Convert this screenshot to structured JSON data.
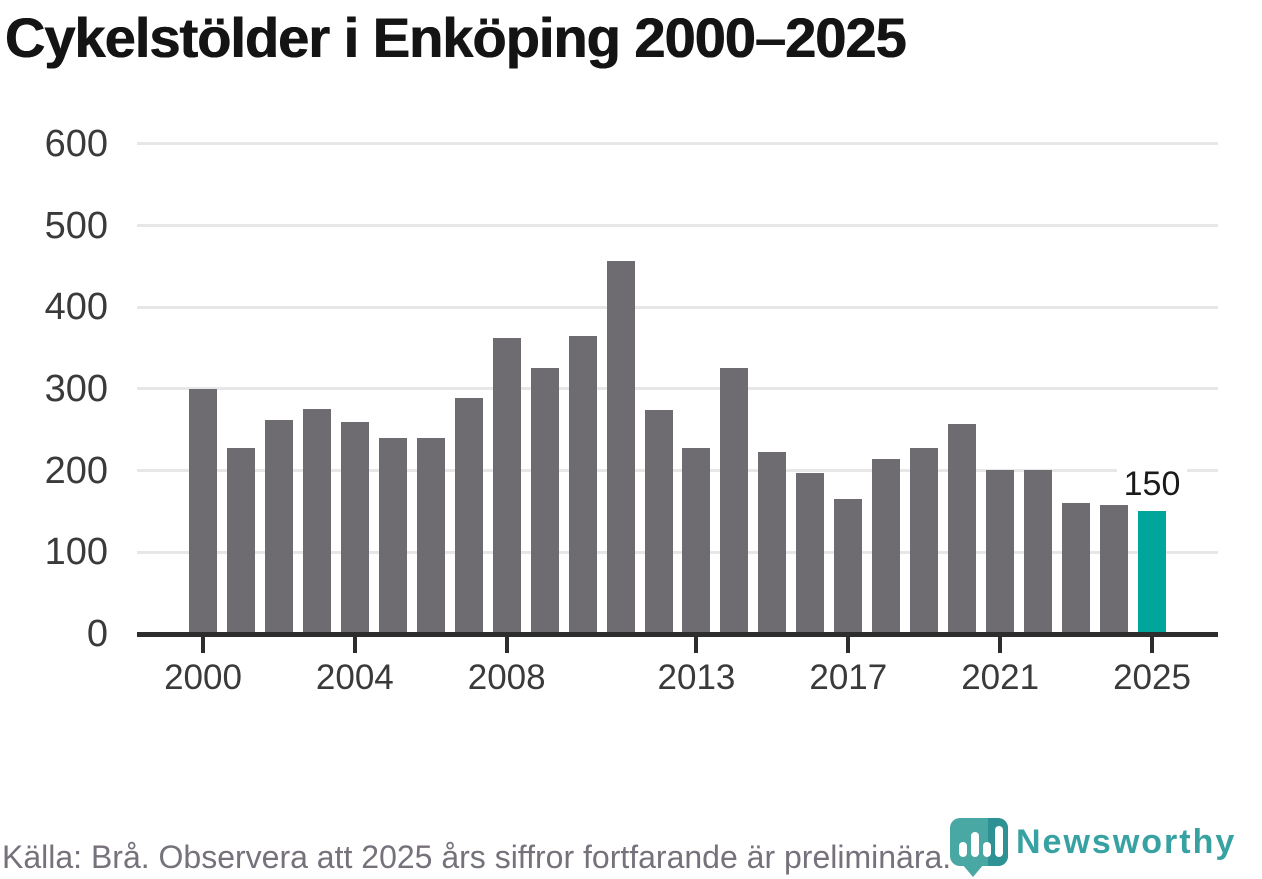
{
  "title": "Cykelstölder i Enköping 2000–2025",
  "source_note": "Källa: Brå. Observera att 2025 års siffror fortfarande är preliminära.",
  "brand": {
    "name": "Newsworthy",
    "icon": "newsworthy-pin-barchart-icon"
  },
  "colors": {
    "bar": "#6e6c71",
    "highlight": "#00a59b",
    "gridline": "#e7e7e7",
    "axis": "#2d2d2d",
    "axis_text": "#3a3a3a",
    "annotation_text": "#1a1a1a",
    "footer_text": "#76717b",
    "logo_teal": "#49a8a3",
    "logo_teal_dark": "#2e9193",
    "wordmark_teal": "#38a2a2"
  },
  "chart_data": {
    "type": "bar",
    "title": "Cykelstölder i Enköping 2000–2025",
    "x": [
      2000,
      2001,
      2002,
      2003,
      2004,
      2005,
      2006,
      2007,
      2008,
      2009,
      2010,
      2011,
      2012,
      2013,
      2014,
      2015,
      2016,
      2017,
      2018,
      2019,
      2020,
      2021,
      2022,
      2023,
      2024,
      2025
    ],
    "values": [
      300,
      228,
      262,
      275,
      260,
      240,
      240,
      289,
      362,
      325,
      365,
      456,
      274,
      228,
      326,
      223,
      197,
      165,
      214,
      228,
      257,
      201,
      201,
      160,
      158,
      150
    ],
    "highlight_year": 2025,
    "highlight_value_label": "150",
    "xlabel": "",
    "ylabel": "",
    "ylim": [
      0,
      600
    ],
    "yticks": [
      0,
      100,
      200,
      300,
      400,
      500,
      600
    ],
    "xticks": [
      2000,
      2004,
      2008,
      2013,
      2017,
      2021,
      2025
    ],
    "grid": "horizontal",
    "legend": "none"
  }
}
